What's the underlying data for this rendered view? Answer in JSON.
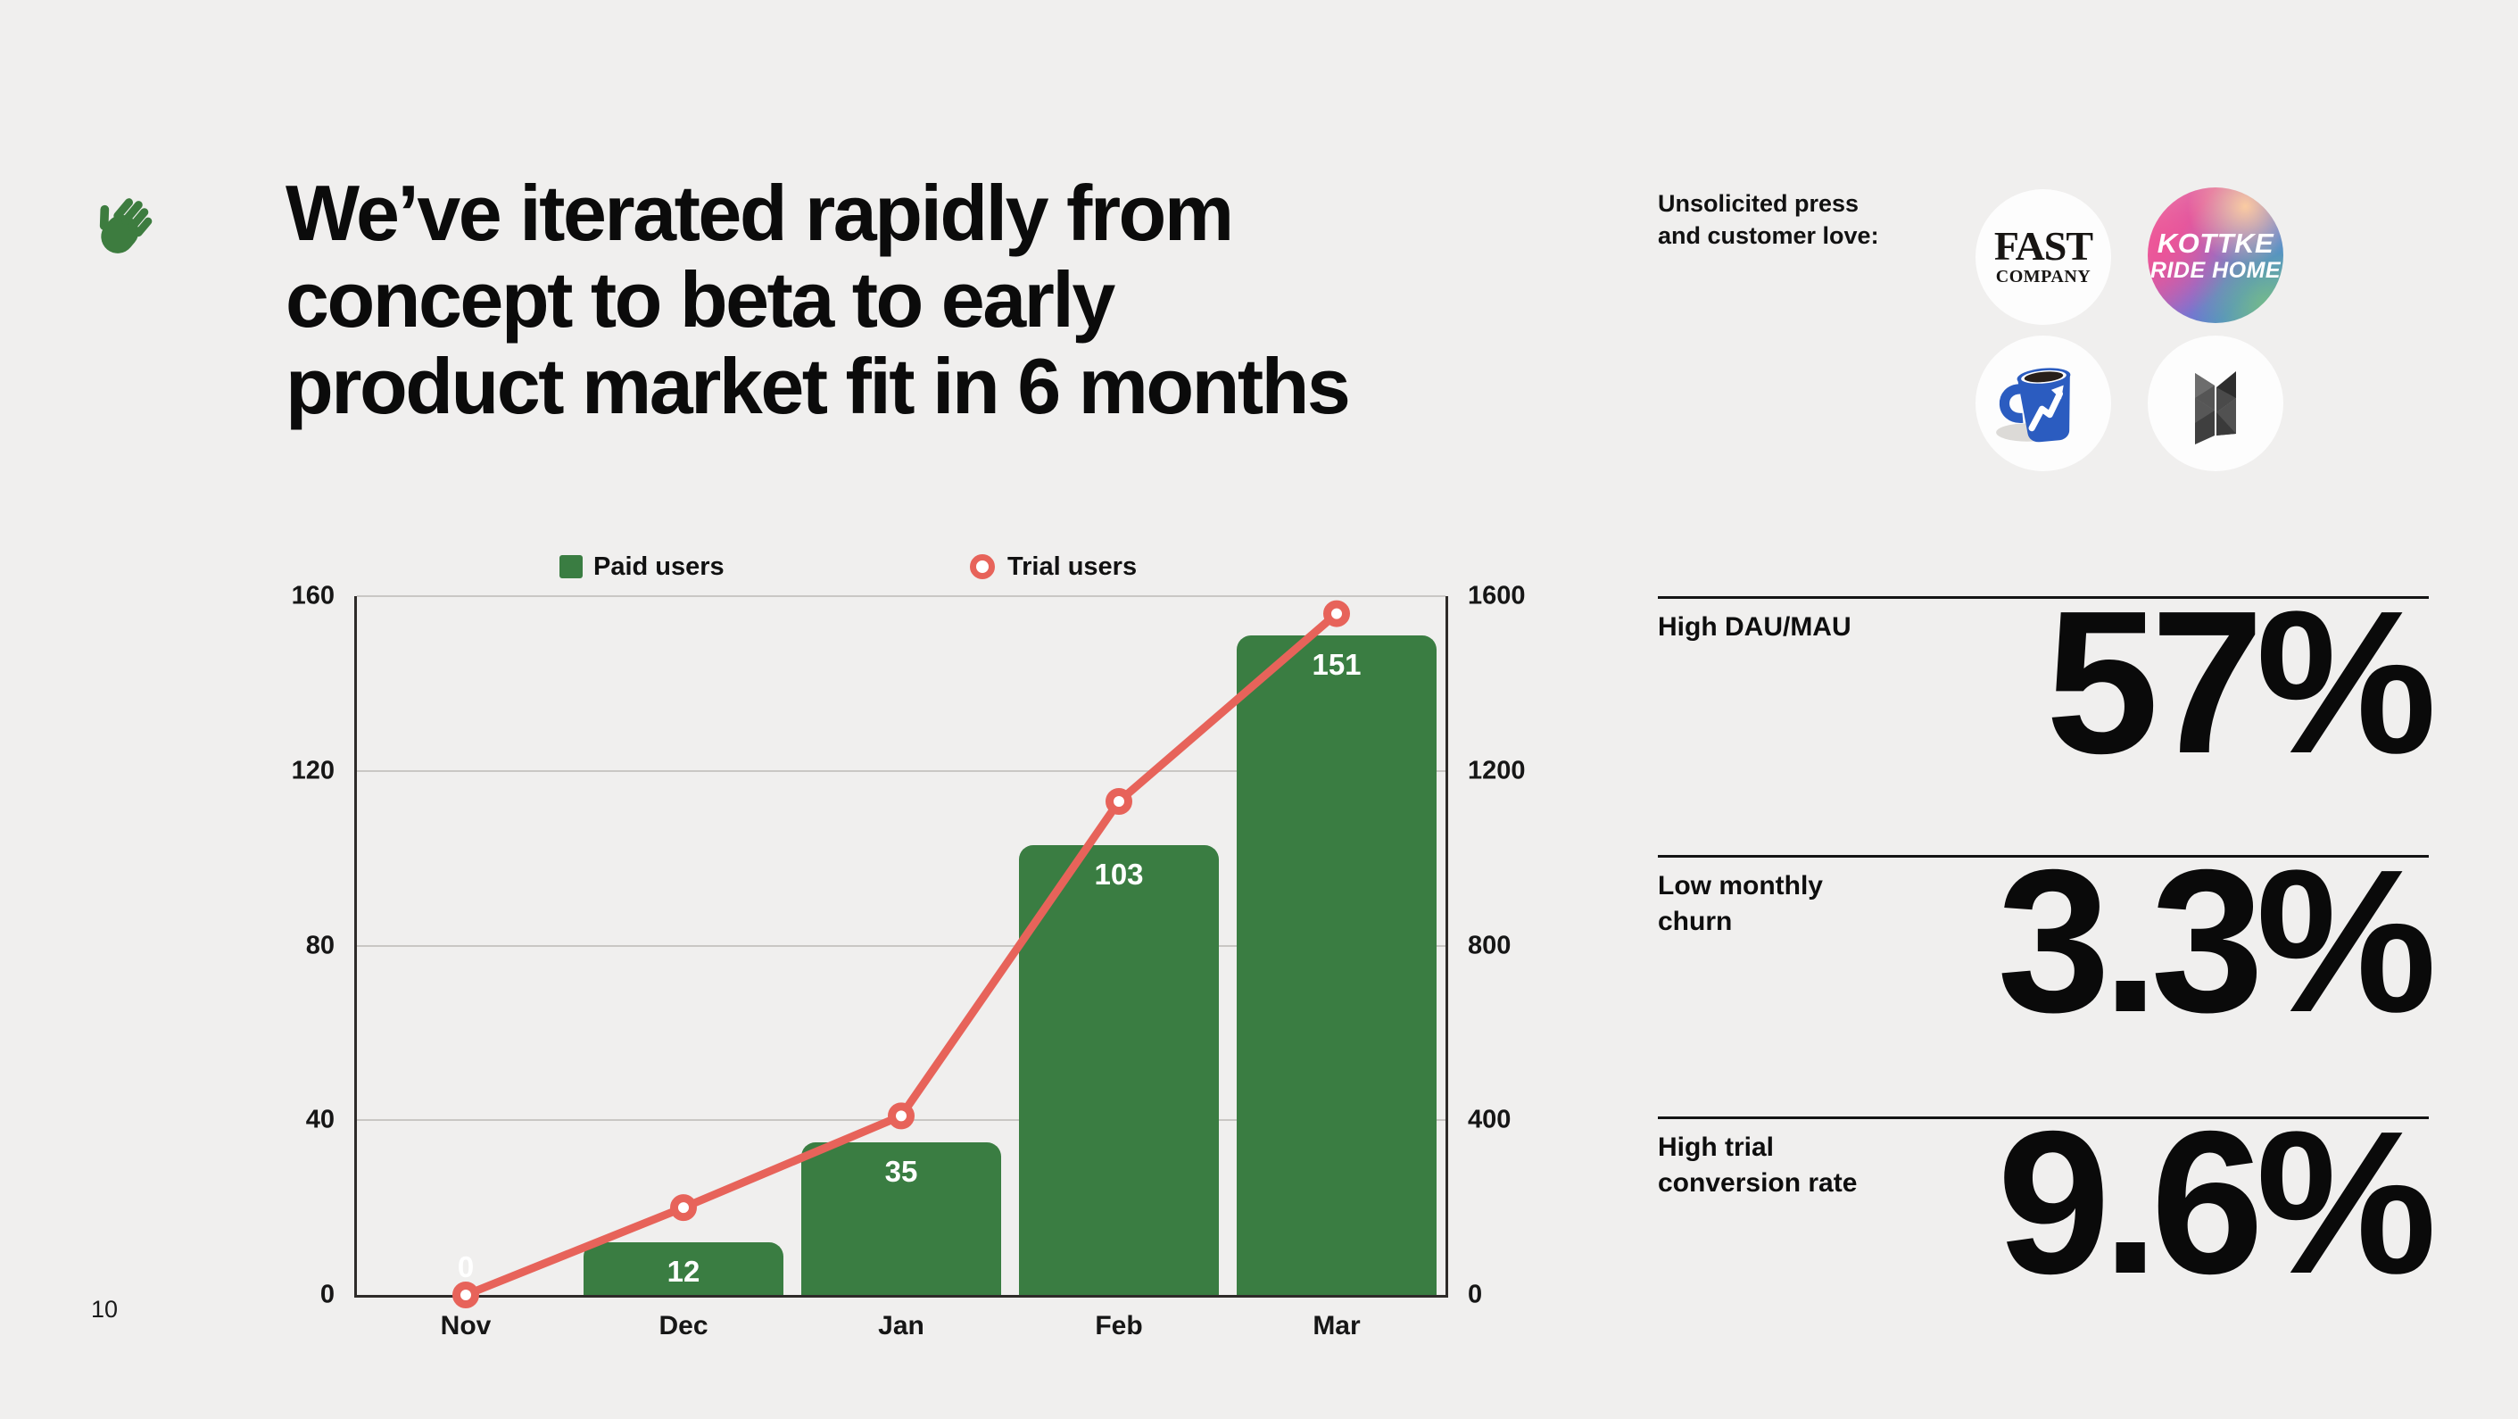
{
  "page": {
    "number": "10"
  },
  "header": {
    "hand_icon": "waving-hand",
    "headline_lines": [
      "We’ve iterated rapidly from",
      "concept to beta to early",
      "product market fit in 6 months"
    ]
  },
  "press": {
    "label_lines": [
      "Unsolicited press",
      "and customer love:"
    ],
    "logos": [
      {
        "name": "fast-company",
        "line1": "FAST",
        "line2": "COMPANY"
      },
      {
        "name": "kottke-ride-home",
        "line1": "KOTTKE",
        "line2": "RIDE HOME"
      },
      {
        "name": "morning-brew-mug"
      },
      {
        "name": "noteworthy-n-mark"
      }
    ]
  },
  "chart_data": {
    "type": "bar",
    "subtype": "combo-bar-line",
    "categories": [
      "Nov",
      "Dec",
      "Jan",
      "Feb",
      "Mar"
    ],
    "series": [
      {
        "name": "Paid users",
        "type": "bar",
        "axis": "left",
        "color": "#3a7d42",
        "values": [
          0,
          12,
          35,
          103,
          151
        ]
      },
      {
        "name": "Trial users",
        "type": "line",
        "axis": "right",
        "color": "#e7635a",
        "values": [
          0,
          200,
          410,
          1130,
          1560
        ]
      }
    ],
    "left_axis": {
      "min": 0,
      "max": 160,
      "ticks": [
        0,
        40,
        80,
        120,
        160
      ]
    },
    "right_axis": {
      "min": 0,
      "max": 1600,
      "ticks": [
        0,
        400,
        800,
        1200,
        1600
      ]
    },
    "grid": true,
    "legend_position": "top",
    "bar_labels_shown": true
  },
  "stats": [
    {
      "label_lines": [
        "High DAU/MAU",
        ""
      ],
      "value": "57%"
    },
    {
      "label_lines": [
        "Low monthly",
        "churn"
      ],
      "value": "3.3%"
    },
    {
      "label_lines": [
        "High trial",
        "conversion rate"
      ],
      "value": "9.6%"
    }
  ],
  "colors": {
    "background": "#f0efee",
    "bar_green": "#3a7d42",
    "line_salmon": "#e7635a",
    "text": "#0d0d0d",
    "gridline": "#c9c7c4",
    "hand_green": "#3d7c3f"
  }
}
